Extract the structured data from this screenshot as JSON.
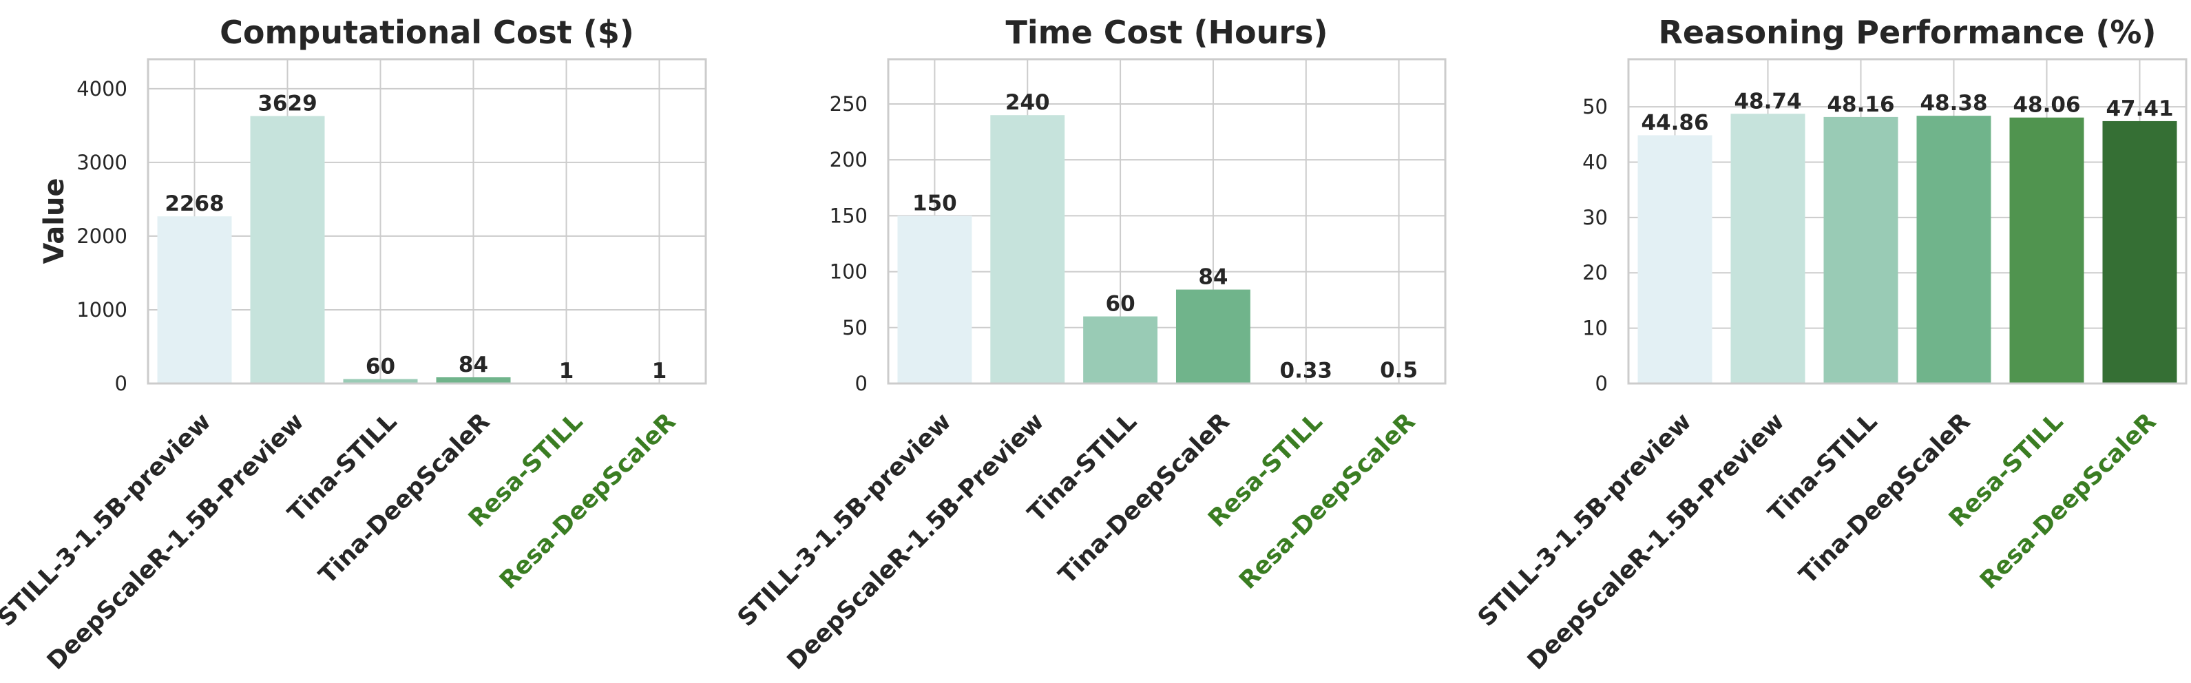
{
  "figure": {
    "ylabel": "Value",
    "highlight_color": "#3a7d22",
    "text_color": "#262626",
    "grid_color": "#cccccc",
    "bar_colors": [
      "#e3f0f4",
      "#c6e3dc",
      "#99cbb5",
      "#70b48b",
      "#50944f",
      "#356f34"
    ]
  },
  "chart_data": [
    {
      "type": "bar",
      "title": "Computational Cost ($)",
      "categories": [
        "STILL-3-1.5B-preview",
        "DeepScaleR-1.5B-Preview",
        "Tina-STILL",
        "Tina-DeepScaleR",
        "Resa-STILL",
        "Resa-DeepScaleR"
      ],
      "highlighted_categories": [
        "Resa-STILL",
        "Resa-DeepScaleR"
      ],
      "values": [
        2268,
        3629,
        60,
        84,
        1,
        1
      ],
      "value_labels": [
        "2268",
        "3629",
        "60",
        "84",
        "1",
        "1"
      ],
      "ylabel": "Value",
      "ylim": [
        0,
        4400
      ],
      "yticks": [
        0,
        1000,
        2000,
        3000,
        4000
      ],
      "grid": true
    },
    {
      "type": "bar",
      "title": "Time Cost (Hours)",
      "categories": [
        "STILL-3-1.5B-preview",
        "DeepScaleR-1.5B-Preview",
        "Tina-STILL",
        "Tina-DeepScaleR",
        "Resa-STILL",
        "Resa-DeepScaleR"
      ],
      "highlighted_categories": [
        "Resa-STILL",
        "Resa-DeepScaleR"
      ],
      "values": [
        150,
        240,
        60,
        84,
        0.33,
        0.5
      ],
      "value_labels": [
        "150",
        "240",
        "60",
        "84",
        "0.33",
        "0.5"
      ],
      "ylabel": "",
      "ylim": [
        0,
        290
      ],
      "yticks": [
        0,
        50,
        100,
        150,
        200,
        250
      ],
      "grid": true
    },
    {
      "type": "bar",
      "title": "Reasoning Performance (%)",
      "categories": [
        "STILL-3-1.5B-preview",
        "DeepScaleR-1.5B-Preview",
        "Tina-STILL",
        "Tina-DeepScaleR",
        "Resa-STILL",
        "Resa-DeepScaleR"
      ],
      "highlighted_categories": [
        "Resa-STILL",
        "Resa-DeepScaleR"
      ],
      "values": [
        44.86,
        48.74,
        48.16,
        48.38,
        48.06,
        47.41
      ],
      "value_labels": [
        "44.86",
        "48.74",
        "48.16",
        "48.38",
        "48.06",
        "47.41"
      ],
      "ylabel": "",
      "ylim": [
        0,
        58.6
      ],
      "yticks": [
        0,
        10,
        20,
        30,
        40,
        50
      ],
      "grid": true
    }
  ]
}
